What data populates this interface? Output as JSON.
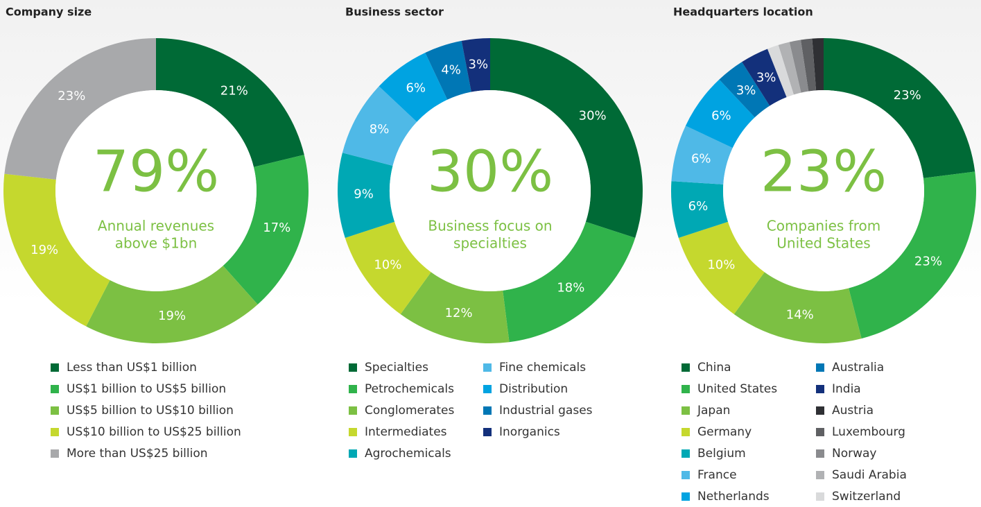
{
  "chart_data": [
    {
      "type": "donut",
      "title": "Company size",
      "center_value": "79%",
      "center_text": [
        "Annual revenues",
        "above $1bn"
      ],
      "categories": [
        "Less than US$1 billion",
        "US$1 billion to US$5 billion",
        "US$5 billion to US$10 billion",
        "US$10 billion to US$25 billion",
        "More than US$25 billion"
      ],
      "values": [
        21,
        17,
        19,
        19,
        23
      ],
      "value_labels": [
        "21%",
        "17%",
        "19%",
        "19%",
        "23%"
      ],
      "colors": [
        "#006a36",
        "#30b34b",
        "#7cc043",
        "#c5d82e",
        "#a8a9ab"
      ]
    },
    {
      "type": "donut",
      "title": "Business sector",
      "center_value": "30%",
      "center_text": [
        "Business focus on",
        "specialties"
      ],
      "categories": [
        "Specialties",
        "Petrochemicals",
        "Conglomerates",
        "Intermediates",
        "Agrochemicals",
        "Fine chemicals",
        "Distribution",
        "Industrial gases",
        "Inorganics"
      ],
      "values": [
        30,
        18,
        12,
        10,
        9,
        8,
        6,
        4,
        3
      ],
      "value_labels": [
        "30%",
        "18%",
        "12%",
        "10%",
        "9%",
        "8%",
        "6%",
        "4%",
        "3%"
      ],
      "colors": [
        "#006a36",
        "#30b34b",
        "#7cc043",
        "#c5d82e",
        "#00a8b4",
        "#4fb9e7",
        "#00a3e1",
        "#0077b5",
        "#13307b"
      ]
    },
    {
      "type": "donut",
      "title": "Headquarters location",
      "center_value": "23%",
      "center_text": [
        "Companies from",
        "United States"
      ],
      "categories": [
        "China",
        "United States",
        "Japan",
        "Germany",
        "Belgium",
        "France",
        "Netherlands",
        "Australia",
        "India",
        "Austria",
        "Luxembourg",
        "Norway",
        "Saudi Arabia",
        "Switzerland"
      ],
      "values": [
        23,
        23,
        14,
        10,
        6,
        6,
        6,
        3,
        3,
        1.2,
        1.2,
        1.2,
        1.2,
        1.2
      ],
      "value_labels": [
        "23%",
        "23%",
        "14%",
        "10%",
        "6%",
        "6%",
        "6%",
        "3%",
        "3%",
        null,
        null,
        null,
        null,
        null
      ],
      "colors": [
        "#006a36",
        "#30b34b",
        "#7cc043",
        "#c5d82e",
        "#00a8b4",
        "#4fb9e7",
        "#00a3e1",
        "#0077b5",
        "#13307b",
        "#2f3034",
        "#5f6063",
        "#8a8b8e",
        "#b1b2b4",
        "#d9dadb"
      ]
    }
  ]
}
